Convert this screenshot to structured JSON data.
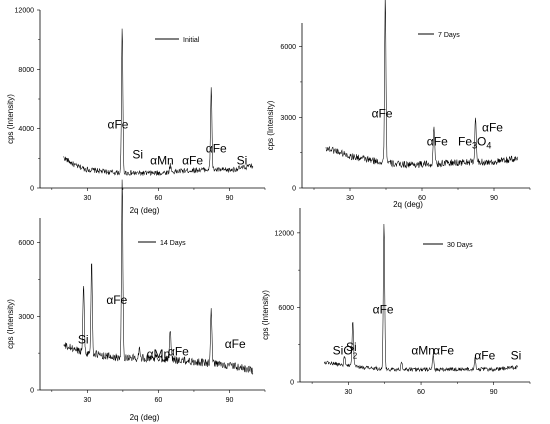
{
  "chart_data": [
    {
      "type": "line",
      "xlabel": "2q (deg)",
      "ylabel": "cps (Intensity)",
      "legend": "Initial",
      "xlim": [
        10,
        105
      ],
      "ylim": [
        0,
        12000
      ],
      "xticks": [
        30,
        60,
        90
      ],
      "yticks": [
        0,
        4000,
        8000,
        12000
      ],
      "baseline": [
        [
          20,
          2050
        ],
        [
          25,
          1500
        ],
        [
          30,
          1250
        ],
        [
          40,
          1050
        ],
        [
          50,
          1000
        ],
        [
          60,
          1000
        ],
        [
          70,
          1150
        ],
        [
          80,
          1250
        ],
        [
          90,
          1200
        ],
        [
          100,
          1500
        ]
      ],
      "noise": 180,
      "peaks": [
        [
          44.7,
          9800
        ],
        [
          65,
          500
        ],
        [
          82.3,
          5600
        ]
      ],
      "annotations": [
        {
          "text": "αFe",
          "x": 38.5,
          "y": 4000
        },
        {
          "text": "Si",
          "x": 49,
          "y": 2000
        },
        {
          "text": "αMn",
          "x": 56.5,
          "y": 1600
        },
        {
          "text": "αFe",
          "x": 70,
          "y": 1600
        },
        {
          "text": "αFe",
          "x": 80,
          "y": 2400
        },
        {
          "text": "Si",
          "x": 93,
          "y": 1600
        }
      ]
    },
    {
      "type": "line",
      "xlabel": "2q (deg)",
      "ylabel": "cps (Intensity)",
      "legend": "7 Days",
      "xlim": [
        10,
        105
      ],
      "ylim": [
        0,
        7000
      ],
      "xticks": [
        30,
        60,
        90
      ],
      "yticks": [
        0,
        3000,
        6000
      ],
      "baseline": [
        [
          20,
          1700
        ],
        [
          25,
          1550
        ],
        [
          30,
          1350
        ],
        [
          40,
          1150
        ],
        [
          50,
          1000
        ],
        [
          60,
          1000
        ],
        [
          70,
          1050
        ],
        [
          80,
          1100
        ],
        [
          90,
          1100
        ],
        [
          100,
          1250
        ]
      ],
      "noise": 150,
      "peaks": [
        [
          44.7,
          7100
        ],
        [
          65,
          1650
        ],
        [
          82.3,
          1950
        ]
      ],
      "annotations": [
        {
          "text": "αFe",
          "x": 39,
          "y": 3000
        },
        {
          "text": "αFe",
          "x": 62,
          "y": 1800
        },
        {
          "text": "Fe3O4",
          "x": 75,
          "y": 1800
        },
        {
          "text": "αFe",
          "x": 85,
          "y": 2400
        }
      ]
    },
    {
      "type": "line",
      "xlabel": "2q (deg)",
      "ylabel": "cps (Intensity)",
      "legend": "14 Days",
      "xlim": [
        10,
        105
      ],
      "ylim": [
        0,
        7000
      ],
      "xticks": [
        30,
        60,
        90
      ],
      "yticks": [
        0,
        3000,
        6000
      ],
      "baseline": [
        [
          20,
          1800
        ],
        [
          25,
          1650
        ],
        [
          30,
          1500
        ],
        [
          40,
          1350
        ],
        [
          50,
          1300
        ],
        [
          60,
          1300
        ],
        [
          70,
          1200
        ],
        [
          80,
          1100
        ],
        [
          90,
          1000
        ],
        [
          100,
          800
        ]
      ],
      "noise": 160,
      "peaks": [
        [
          28.4,
          2900
        ],
        [
          31.8,
          3800
        ],
        [
          44.7,
          7200
        ],
        [
          52,
          500
        ],
        [
          65,
          1300
        ],
        [
          82.3,
          2200
        ]
      ],
      "annotations": [
        {
          "text": "Si",
          "x": 26,
          "y": 1900
        },
        {
          "text": "αFe",
          "x": 38,
          "y": 3500
        },
        {
          "text": "αMn",
          "x": 55,
          "y": 1300
        },
        {
          "text": "αFe",
          "x": 64,
          "y": 1400
        },
        {
          "text": "αFe",
          "x": 88,
          "y": 1700
        }
      ]
    },
    {
      "type": "line",
      "xlabel": "",
      "ylabel": "cps (Intensity)",
      "legend": "30 Days",
      "xlim": [
        10,
        105
      ],
      "ylim": [
        0,
        14000
      ],
      "xticks": [
        30,
        60,
        90
      ],
      "yticks": [
        0,
        6000,
        12000
      ],
      "baseline": [
        [
          20,
          1600
        ],
        [
          30,
          1300
        ],
        [
          40,
          1100
        ],
        [
          50,
          1000
        ],
        [
          60,
          1000
        ],
        [
          70,
          1000
        ],
        [
          80,
          1050
        ],
        [
          90,
          1000
        ],
        [
          100,
          1200
        ]
      ],
      "noise": 160,
      "peaks": [
        [
          28.4,
          700
        ],
        [
          31.8,
          3800
        ],
        [
          44.7,
          11700
        ],
        [
          52,
          700
        ],
        [
          65,
          1200
        ],
        [
          82.3,
          900
        ]
      ],
      "annotations": [
        {
          "text": "SiO2",
          "x": 23.5,
          "y": 2200
        },
        {
          "text": "Si",
          "x": 29,
          "y": 2500
        },
        {
          "text": "αFe",
          "x": 40,
          "y": 5500
        },
        {
          "text": "αMn",
          "x": 56,
          "y": 2200
        },
        {
          "text": "αFe",
          "x": 65,
          "y": 2200
        },
        {
          "text": "αFe",
          "x": 82,
          "y": 1800
        },
        {
          "text": "Si",
          "x": 97,
          "y": 1800
        }
      ]
    }
  ]
}
